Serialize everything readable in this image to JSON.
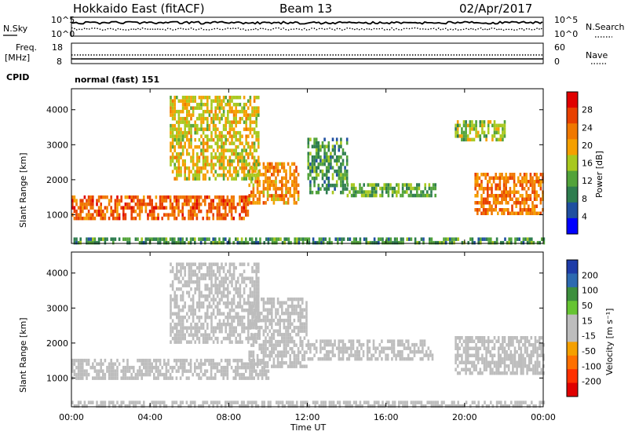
{
  "header": {
    "radar": "Hokkaido East (fitACF)",
    "beam": "Beam 13",
    "date": "02/Apr/2017"
  },
  "noise_panel": {
    "left_label": "N.Sky",
    "right_label": "N.Search",
    "y_ticks_left": [
      "10^5",
      "10^0"
    ],
    "y_ticks_right": [
      "10^5",
      "10^0"
    ]
  },
  "freq_panel": {
    "left_label_1": "Freq.",
    "left_label_2": "[MHz]",
    "y_ticks_left": [
      "18",
      "8"
    ],
    "y_ticks_right": [
      "60",
      "0"
    ],
    "right_label": "Nave"
  },
  "cpid": {
    "label": "CPID",
    "value": "normal (fast) 151"
  },
  "colors": {
    "power_scale": [
      "#0000ff",
      "#1f4fa0",
      "#2e7d4f",
      "#52a33a",
      "#a8c81e",
      "#f5a000",
      "#f07800",
      "#e84000",
      "#e00000"
    ],
    "velocity_scale": [
      "#1e3ca8",
      "#2d6ab0",
      "#3d8f3d",
      "#66c432",
      "#bdbdbd",
      "#bdbdbd",
      "#f5a000",
      "#ff7000",
      "#ff3000",
      "#e00000"
    ]
  },
  "chart_data": [
    {
      "type": "heatmap",
      "panel": "power",
      "ylabel": "Slant Range [km]",
      "y_ticks": [
        1000,
        2000,
        3000,
        4000
      ],
      "ylim": [
        180,
        4600
      ],
      "x_ticks": [
        "00:00",
        "04:00",
        "08:00",
        "12:00",
        "16:00",
        "20:00",
        "00:00"
      ],
      "colorbar": {
        "label": "Power [dB]",
        "ticks": [
          4,
          8,
          12,
          16,
          20,
          24,
          28
        ],
        "range": [
          0,
          32
        ]
      },
      "regions": [
        {
          "t0": 0.0,
          "t1": 9.0,
          "r0": 900,
          "r1": 1550,
          "value": 26
        },
        {
          "t0": 9.0,
          "t1": 11.5,
          "r0": 1300,
          "r1": 2500,
          "value": 22
        },
        {
          "t0": 5.0,
          "t1": 9.5,
          "r0": 2000,
          "r1": 4400,
          "value": 18
        },
        {
          "t0": 12.0,
          "t1": 14.0,
          "r0": 1600,
          "r1": 3200,
          "value": 10
        },
        {
          "t0": 14.0,
          "t1": 18.5,
          "r0": 1550,
          "r1": 1900,
          "value": 12
        },
        {
          "t0": 20.5,
          "t1": 24.0,
          "r0": 1000,
          "r1": 2200,
          "value": 24
        },
        {
          "t0": 19.5,
          "t1": 22.0,
          "r0": 3100,
          "r1": 3700,
          "value": 14
        },
        {
          "t0": 0.0,
          "t1": 24.0,
          "r0": 180,
          "r1": 350,
          "value": 10
        }
      ]
    },
    {
      "type": "heatmap",
      "panel": "velocity",
      "ylabel": "Slant Range [km]",
      "y_ticks": [
        1000,
        2000,
        3000,
        4000
      ],
      "ylim": [
        180,
        4600
      ],
      "x_ticks": [
        "00:00",
        "04:00",
        "08:00",
        "12:00",
        "16:00",
        "20:00",
        "00:00"
      ],
      "xlabel": "Time UT",
      "colorbar": {
        "label": "Velocity [m s⁻¹]",
        "ticks": [
          200,
          100,
          50,
          15,
          -15,
          -50,
          -100,
          -200
        ],
        "range": [
          -250,
          250
        ]
      },
      "regions": [
        {
          "t0": 0.0,
          "t1": 10.0,
          "r0": 950,
          "r1": 1550,
          "value": 0
        },
        {
          "t0": 9.0,
          "t1": 12.0,
          "r0": 1300,
          "r1": 3300,
          "value": 0
        },
        {
          "t0": 5.0,
          "t1": 9.5,
          "r0": 2000,
          "r1": 4300,
          "value": -30
        },
        {
          "t0": 12.0,
          "t1": 18.0,
          "r0": 1550,
          "r1": 2100,
          "value": 40
        },
        {
          "t0": 17.8,
          "t1": 18.5,
          "r0": 1500,
          "r1": 1900,
          "value": -40
        },
        {
          "t0": 19.5,
          "t1": 24.0,
          "r0": 1100,
          "r1": 2200,
          "value": 0
        },
        {
          "t0": 0.0,
          "t1": 24.0,
          "r0": 180,
          "r1": 350,
          "value": 30
        }
      ]
    }
  ]
}
